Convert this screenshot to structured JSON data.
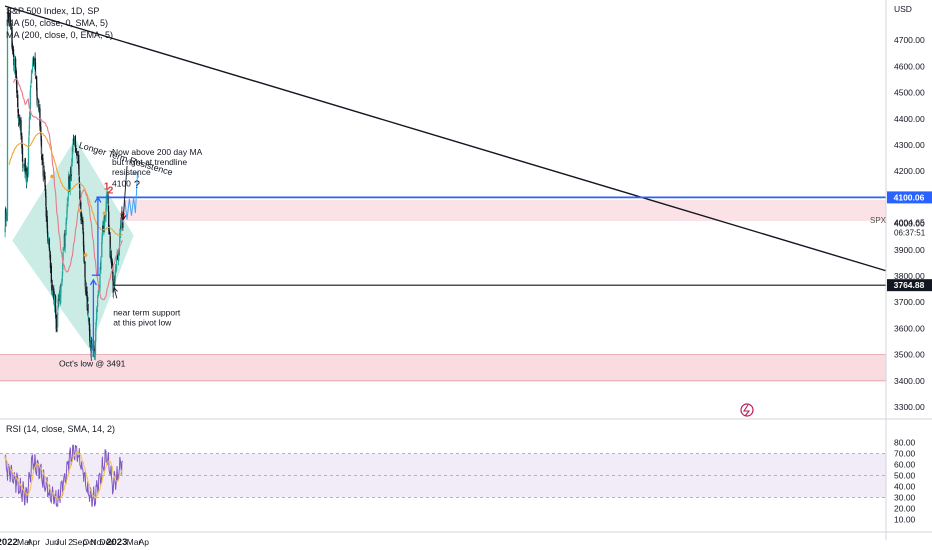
{
  "colors": {
    "bull": "#26a69a",
    "bear": "#131722",
    "ma50": "#e57a8a",
    "ma200": "#f0a53a",
    "trend": "#131722",
    "resistance": "#2962ff",
    "support_zone": "#f8d6db",
    "diamond": "#b9e6dc",
    "rsi_line": "#7e57c2",
    "rsi_ma": "#f5c242",
    "rsi_band": "#ede7f6",
    "red_label": "#e53935",
    "axis_text": "#131722"
  },
  "header": {
    "price_legend": [
      "S&P 500 Index, 1D, SP",
      "MA (50, close, 0, SMA, 5)",
      "MA (200, close, 0, EMA, 5)"
    ],
    "rsi_legend": "RSI (14, close, SMA, 14, 2)",
    "currency_label": "USD"
  },
  "chart_data": [
    {
      "type": "candlestick",
      "title": "S&P 500 Index, 1D, SP",
      "symbol": "SPX",
      "x_ticks": [
        "2022",
        "Mar",
        "Apr",
        "Jun",
        "Jul",
        "2",
        "Sep",
        "Oct",
        "Nov",
        "Dec",
        "2023",
        "Mar",
        "Ap"
      ],
      "y_ticks": [
        3300,
        3400,
        3500,
        3600,
        3700,
        3800,
        3900,
        4000,
        4100,
        4200,
        4300,
        4400,
        4500,
        4600,
        4700
      ],
      "ylim": [
        3250,
        4830
      ],
      "grid": false,
      "price_labels": [
        {
          "name": "resistance",
          "text": "4100.06"
        },
        {
          "name": "current",
          "text": "4004.65"
        },
        {
          "name": "countdown",
          "text": "06:37:51"
        },
        {
          "name": "support",
          "text": "3764.88"
        },
        {
          "name": "symbol",
          "text": "SPX"
        }
      ],
      "key_points": [
        {
          "date": "2022-01-04",
          "value": 4818
        },
        {
          "date": "2022-03-08",
          "value": 4170
        },
        {
          "date": "2022-03-29",
          "value": 4637
        },
        {
          "date": "2022-06-16",
          "value": 3636
        },
        {
          "date": "2022-08-16",
          "value": 4325
        },
        {
          "date": "2022-10-13",
          "value": 3491
        },
        {
          "date": "2022-12-01",
          "value": 4100
        },
        {
          "date": "2022-12-22",
          "value": 3765
        },
        {
          "date": "2023-01-23",
          "value": 4005
        }
      ],
      "annotations": [
        {
          "name": "longer-term-resistance",
          "text": "Longer Term Resistence"
        },
        {
          "name": "above-200-ma",
          "text": "Now above 200 day MA\nbut right at trendline\nresistence"
        },
        {
          "name": "level-4100",
          "text": "4100"
        },
        {
          "name": "question",
          "text": "?"
        },
        {
          "name": "near-term-support",
          "text": "near term support\nat this pivot low"
        },
        {
          "name": "octs-low",
          "text": "Oct's low @ 3491"
        },
        {
          "name": "touch-1",
          "text": "1"
        },
        {
          "name": "touch-2",
          "text": "2"
        },
        {
          "name": "touch-3",
          "text": "3"
        }
      ]
    },
    {
      "type": "line",
      "title": "RSI (14, close, SMA, 14, 2)",
      "y_ticks": [
        10,
        20,
        30,
        40,
        50,
        60,
        70,
        80
      ],
      "ylim": [
        4,
        86
      ],
      "bands": [
        30,
        70
      ],
      "key_points": [
        {
          "date": "2022-01-04",
          "value": 55
        },
        {
          "date": "2022-03-08",
          "value": 31
        },
        {
          "date": "2022-03-29",
          "value": 62
        },
        {
          "date": "2022-06-16",
          "value": 26
        },
        {
          "date": "2022-08-16",
          "value": 75
        },
        {
          "date": "2022-10-13",
          "value": 27
        },
        {
          "date": "2022-12-01",
          "value": 66
        },
        {
          "date": "2022-12-22",
          "value": 41
        },
        {
          "date": "2023-01-23",
          "value": 61
        }
      ]
    }
  ]
}
